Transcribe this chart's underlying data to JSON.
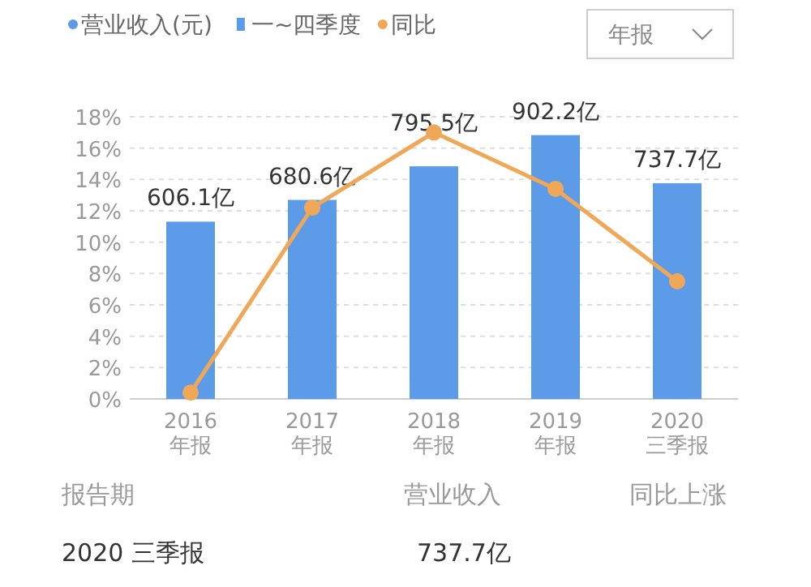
{
  "chart_data": {
    "type": "bar",
    "categories": [
      "2016\n年报",
      "2017\n年报",
      "2018\n年报",
      "2019\n年报",
      "2020\n三季报"
    ],
    "series": [
      {
        "name": "营业收入(元)",
        "axis": "y2",
        "color": "#5b9be8",
        "values": [
          606.1,
          680.6,
          795.5,
          902.2,
          737.7
        ],
        "value_labels": [
          "606.1亿",
          "680.6亿",
          "795.5亿",
          "902.2亿",
          "737.7亿"
        ]
      },
      {
        "name": "同比",
        "type": "line",
        "color": "#f0a858",
        "values": [
          0.4,
          12.2,
          17.0,
          13.4,
          7.5
        ]
      }
    ],
    "ylim": [
      0,
      18
    ],
    "yticks": [
      {
        "value": 0,
        "label": "0%"
      },
      {
        "value": 2,
        "label": "2%"
      },
      {
        "value": 4,
        "label": "4%"
      },
      {
        "value": 6,
        "label": "6%"
      },
      {
        "value": 8,
        "label": "8%"
      },
      {
        "value": 10,
        "label": "10%"
      },
      {
        "value": 12,
        "label": "12%"
      },
      {
        "value": 14,
        "label": "14%"
      },
      {
        "value": 16,
        "label": "16%"
      },
      {
        "value": 18,
        "label": "18%"
      }
    ],
    "y2lim": [
      0,
      965
    ],
    "grid": "y",
    "legend": "top",
    "marker": "circle",
    "annotations": [
      "一~四季度",
      "年报",
      "报告期",
      "营业收入",
      "同比上涨",
      "2020 三季报",
      "737.7亿"
    ]
  }
}
